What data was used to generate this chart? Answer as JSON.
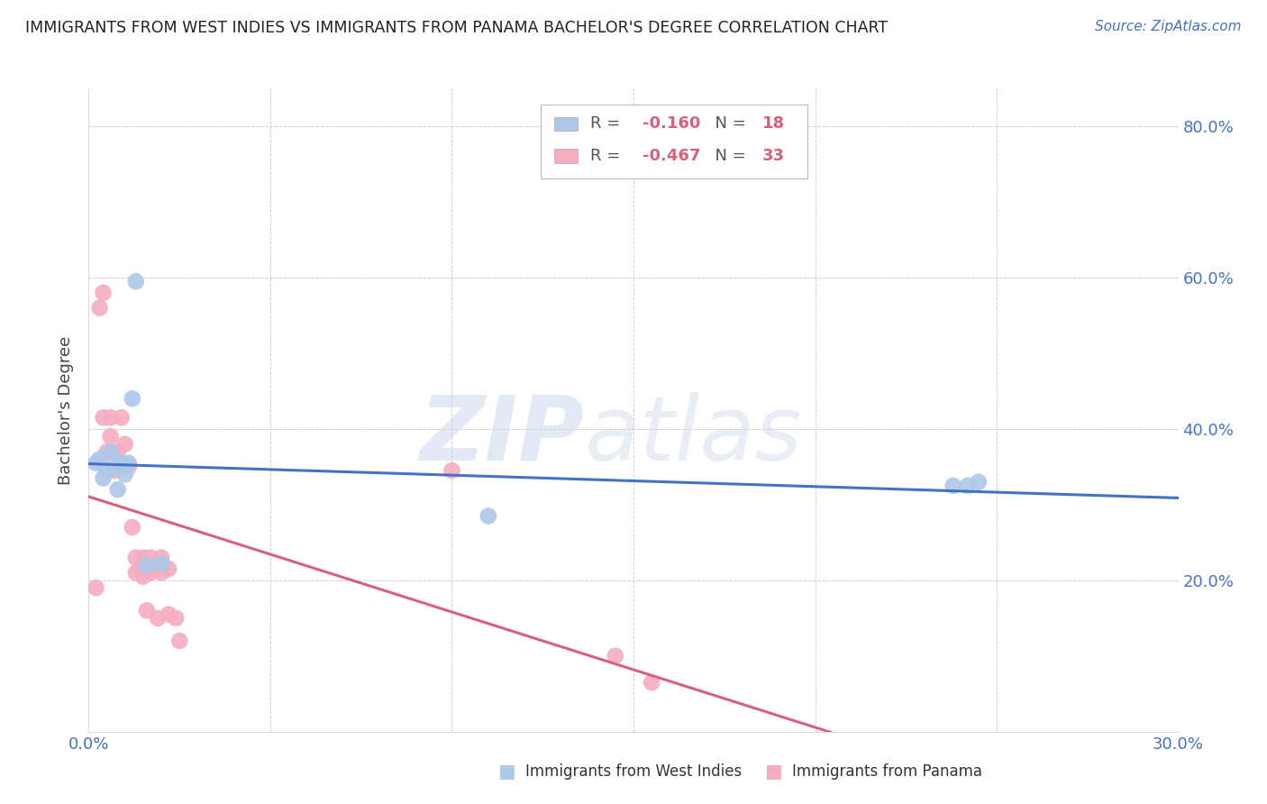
{
  "title": "IMMIGRANTS FROM WEST INDIES VS IMMIGRANTS FROM PANAMA BACHELOR'S DEGREE CORRELATION CHART",
  "source": "Source: ZipAtlas.com",
  "ylabel": "Bachelor's Degree",
  "xlim": [
    0.0,
    0.3
  ],
  "ylim": [
    0.0,
    0.85
  ],
  "blue_label": "Immigrants from West Indies",
  "pink_label": "Immigrants from Panama",
  "blue_R": -0.16,
  "blue_N": 18,
  "pink_R": -0.467,
  "pink_N": 33,
  "blue_color": "#adc8e8",
  "pink_color": "#f5adc0",
  "blue_line_color": "#4472c4",
  "pink_line_color": "#d9607a",
  "blue_x": [
    0.002,
    0.003,
    0.004,
    0.005,
    0.006,
    0.007,
    0.008,
    0.009,
    0.01,
    0.011,
    0.012,
    0.013,
    0.016,
    0.02,
    0.11,
    0.238,
    0.242,
    0.245
  ],
  "blue_y": [
    0.355,
    0.36,
    0.335,
    0.345,
    0.37,
    0.35,
    0.32,
    0.355,
    0.34,
    0.355,
    0.44,
    0.595,
    0.22,
    0.222,
    0.285,
    0.325,
    0.325,
    0.33
  ],
  "pink_x": [
    0.002,
    0.003,
    0.004,
    0.004,
    0.005,
    0.006,
    0.006,
    0.007,
    0.008,
    0.009,
    0.01,
    0.01,
    0.011,
    0.012,
    0.013,
    0.013,
    0.014,
    0.015,
    0.015,
    0.016,
    0.017,
    0.017,
    0.018,
    0.019,
    0.02,
    0.02,
    0.022,
    0.022,
    0.024,
    0.025,
    0.1,
    0.145,
    0.155
  ],
  "pink_y": [
    0.19,
    0.56,
    0.415,
    0.58,
    0.37,
    0.415,
    0.39,
    0.345,
    0.37,
    0.415,
    0.35,
    0.38,
    0.35,
    0.27,
    0.21,
    0.23,
    0.215,
    0.205,
    0.23,
    0.16,
    0.21,
    0.23,
    0.22,
    0.15,
    0.21,
    0.23,
    0.155,
    0.215,
    0.15,
    0.12,
    0.345,
    0.1,
    0.065
  ]
}
